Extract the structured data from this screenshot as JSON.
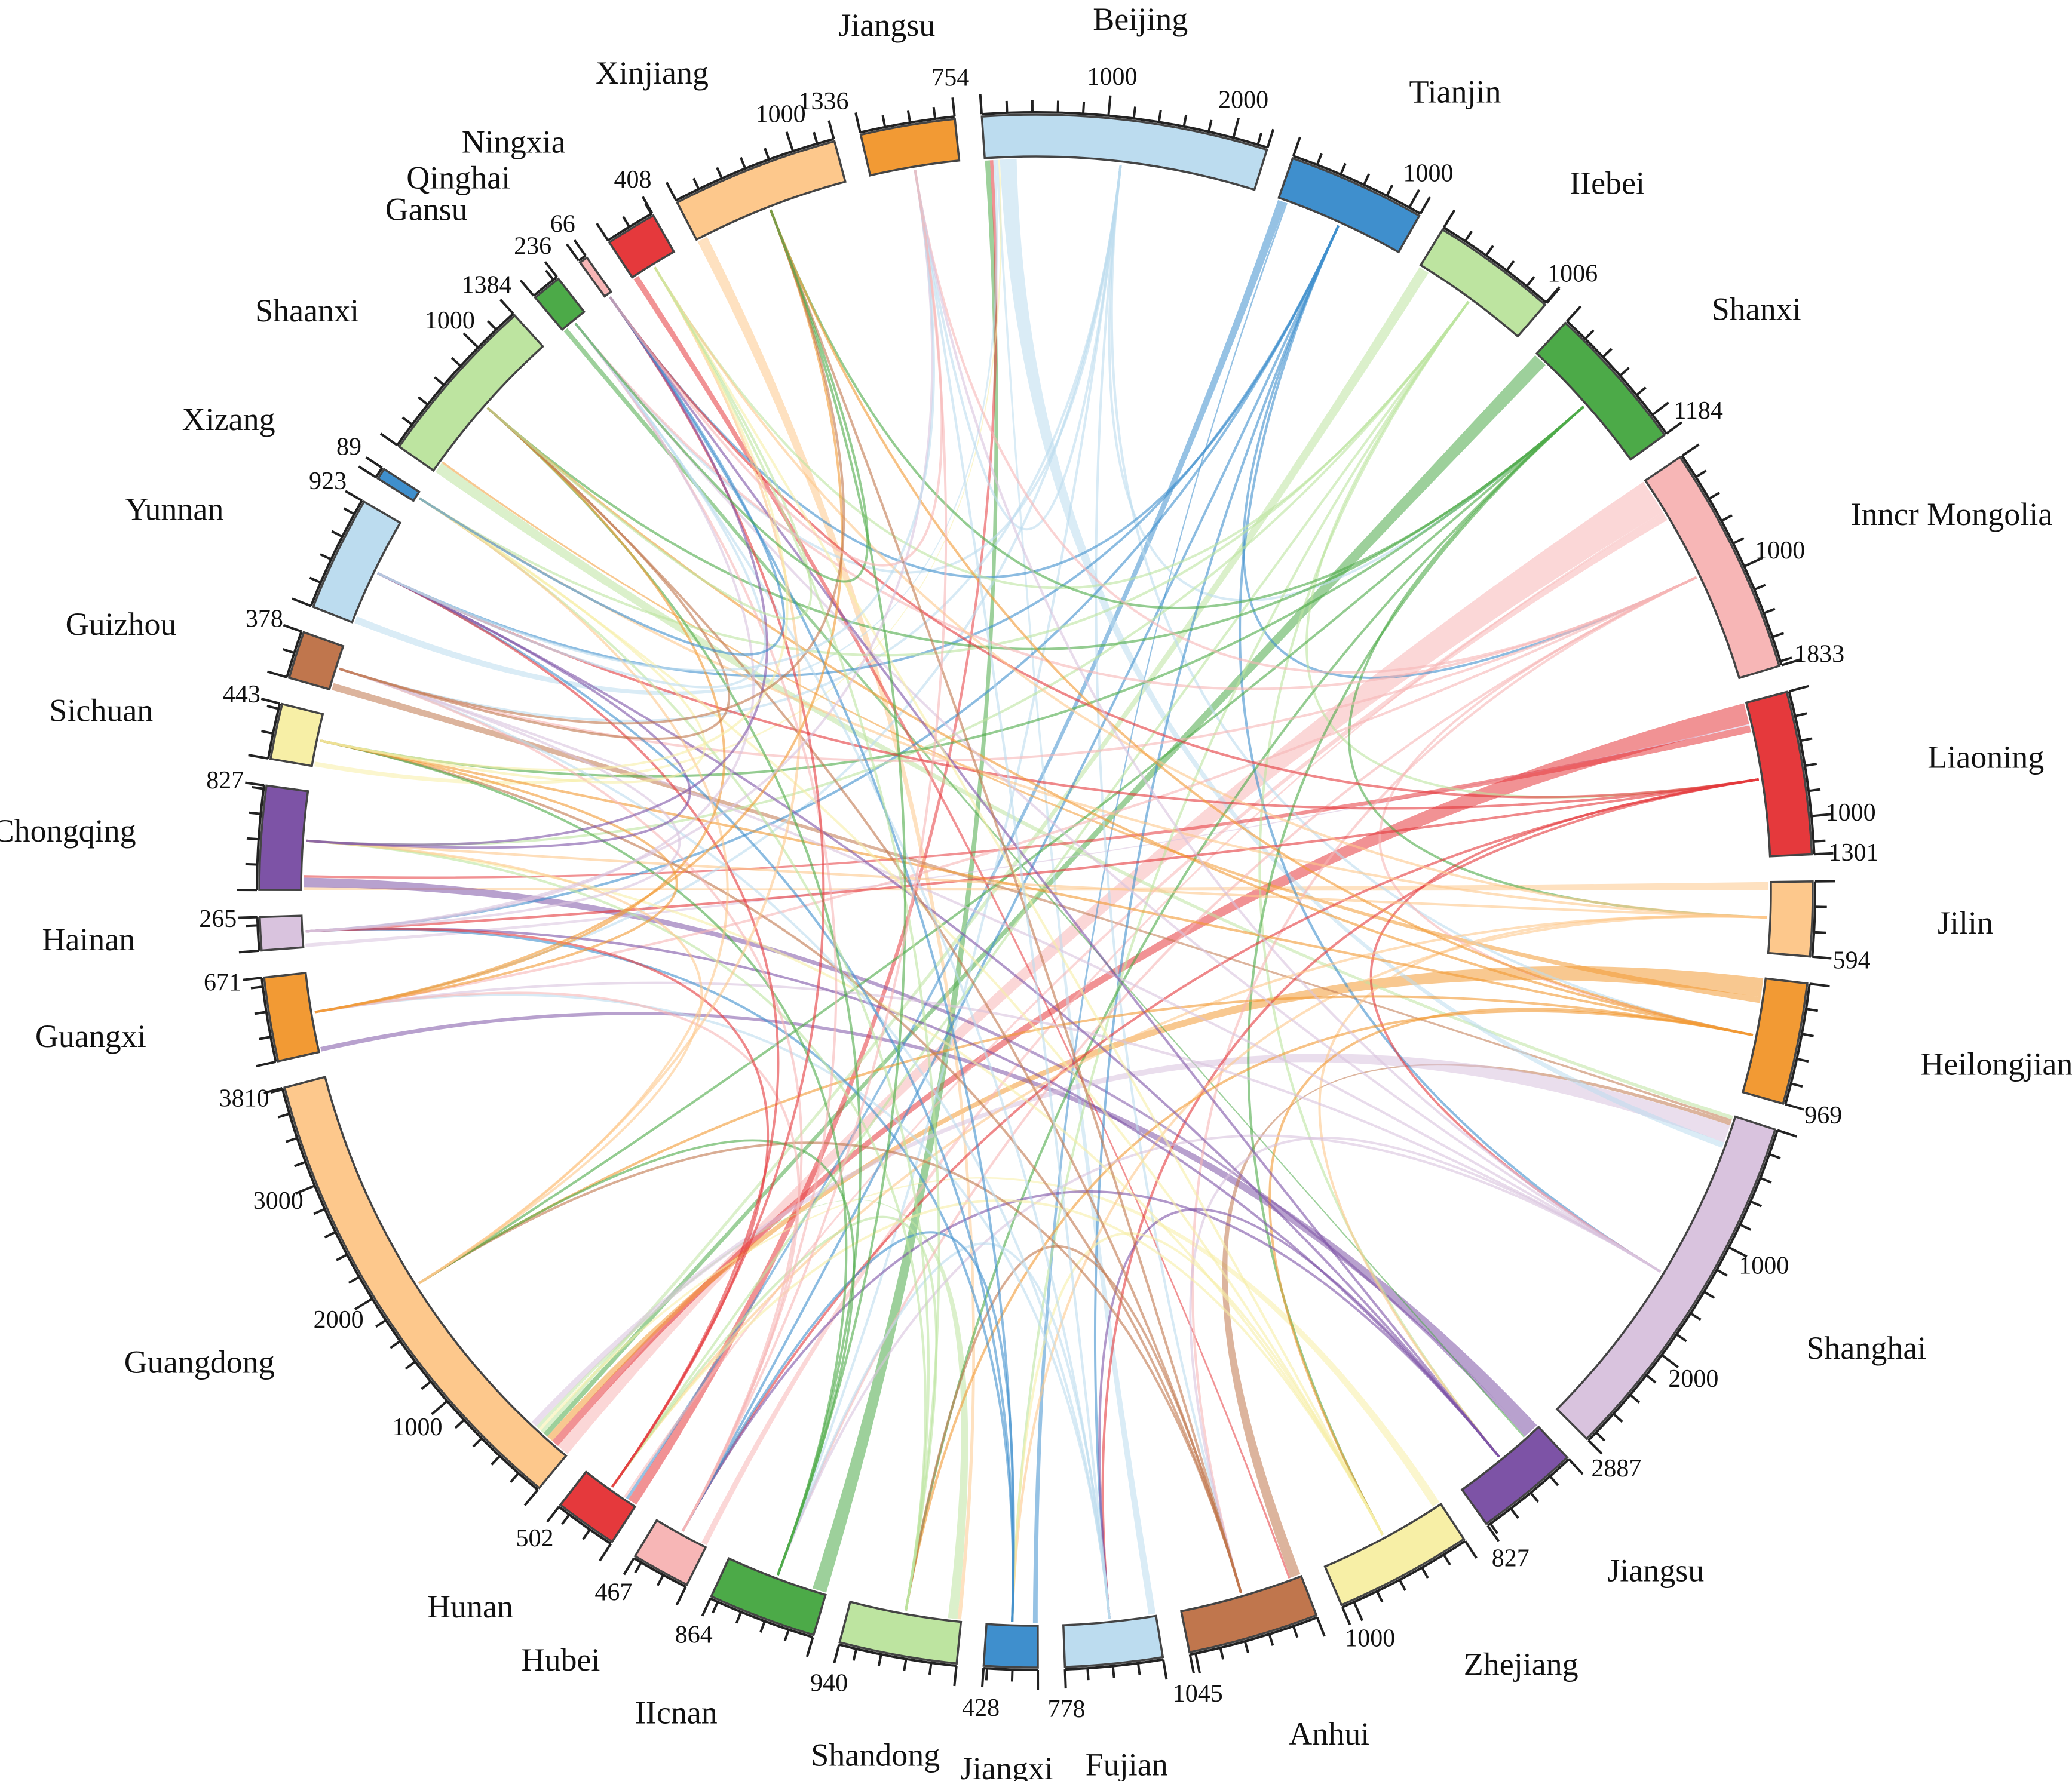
{
  "chart_data": {
    "type": "chord",
    "title": "",
    "regions": [
      {
        "name": "Beijing",
        "value": 2280,
        "color": "#bcdcef",
        "tick_labels": [
          "1000",
          "2000"
        ]
      },
      {
        "name": "Tianjin",
        "value": 1100,
        "color": "#3f8fcd",
        "tick_labels": [
          "1000"
        ]
      },
      {
        "name": "Hebei",
        "label": "IIebei",
        "value": 1006,
        "color": "#bde4a0",
        "tick_labels": [
          "1006"
        ]
      },
      {
        "name": "Shanxi",
        "value": 1184,
        "color": "#4caa48",
        "tick_labels": [
          "1184"
        ]
      },
      {
        "name": "Inner Mongolia",
        "label": "Inncr Mongolia",
        "value": 1833,
        "color": "#f7b6b6",
        "tick_labels": [
          "1000",
          "1833"
        ]
      },
      {
        "name": "Liaoning",
        "value": 1301,
        "color": "#e5393c",
        "tick_labels": [
          "1000",
          "1301"
        ]
      },
      {
        "name": "Jilin",
        "value": 594,
        "color": "#fdc88c",
        "tick_labels": [
          "594"
        ]
      },
      {
        "name": "Heilongjiang",
        "value": 969,
        "color": "#f29a34",
        "tick_labels": [
          "969"
        ]
      },
      {
        "name": "Shanghai",
        "value": 2887,
        "color": "#d9c3de",
        "tick_labels": [
          "1000",
          "2000",
          "2887"
        ]
      },
      {
        "name": "Jiangsu",
        "value": 827,
        "color": "#7d53a6",
        "tick_labels": [
          "827"
        ]
      },
      {
        "name": "Zhejiang",
        "value": 1100,
        "color": "#f7efa6",
        "tick_labels": [
          "1000"
        ]
      },
      {
        "name": "Anhui",
        "value": 1045,
        "color": "#c0764d",
        "tick_labels": [
          "1045"
        ]
      },
      {
        "name": "Fujian",
        "value": 778,
        "color": "#bcdcef",
        "tick_labels": [
          "778"
        ]
      },
      {
        "name": "Jiangxi",
        "value": 428,
        "color": "#3f8fcd",
        "tick_labels": [
          "428"
        ]
      },
      {
        "name": "Shandong",
        "value": 940,
        "color": "#bde4a0",
        "tick_labels": [
          "940"
        ]
      },
      {
        "name": "Henan",
        "label": "IIcnan",
        "value": 864,
        "color": "#4caa48",
        "tick_labels": [
          "864"
        ]
      },
      {
        "name": "Hubei",
        "value": 467,
        "color": "#f7b6b6",
        "tick_labels": [
          "467"
        ]
      },
      {
        "name": "Hunan",
        "value": 502,
        "color": "#e5393c",
        "tick_labels": [
          "502"
        ]
      },
      {
        "name": "Guangdong",
        "value": 3810,
        "color": "#fdc88c",
        "tick_labels": [
          "1000",
          "2000",
          "3000",
          "3810"
        ]
      },
      {
        "name": "Guangxi",
        "value": 671,
        "color": "#f29a34",
        "tick_labels": [
          "671"
        ]
      },
      {
        "name": "Hainan",
        "value": 265,
        "color": "#d9c3de",
        "tick_labels": [
          "265"
        ]
      },
      {
        "name": "Chongqing",
        "value": 827,
        "color": "#7d53a6",
        "tick_labels": [
          "827"
        ]
      },
      {
        "name": "Sichuan",
        "value": 443,
        "color": "#f7efa6",
        "tick_labels": [
          "443"
        ]
      },
      {
        "name": "Guizhou",
        "value": 378,
        "color": "#c0764d",
        "tick_labels": [
          "378"
        ]
      },
      {
        "name": "Yunnan",
        "value": 923,
        "color": "#bcdcef",
        "tick_labels": [
          "923"
        ]
      },
      {
        "name": "Xizang",
        "value": 89,
        "color": "#3f8fcd",
        "tick_labels": [
          "89"
        ]
      },
      {
        "name": "Shaanxi",
        "value": 1384,
        "color": "#bde4a0",
        "tick_labels": [
          "1000",
          "1384"
        ]
      },
      {
        "name": "Gansu",
        "value": 236,
        "color": "#4caa48",
        "tick_labels": [
          "236"
        ]
      },
      {
        "name": "Qinghai",
        "value": 66,
        "color": "#f7b6b6",
        "tick_labels": [
          "66"
        ]
      },
      {
        "name": "Ningxia",
        "value": 408,
        "color": "#e5393c",
        "tick_labels": [
          "408"
        ]
      },
      {
        "name": "Xinjiang",
        "value": 1336,
        "color": "#fdc88c",
        "tick_labels": [
          "1000",
          "1336"
        ]
      },
      {
        "name": "Jiangsu",
        "label": "Jiangsu",
        "value": 754,
        "color": "#f29a34",
        "tick_labels": [
          "754"
        ]
      }
    ],
    "flows": [
      {
        "from": "Inner Mongolia",
        "to": "Guangdong",
        "value": 300
      },
      {
        "from": "Liaoning",
        "to": "Guangdong",
        "value": 180
      },
      {
        "from": "Heilongjiang",
        "to": "Guangdong",
        "value": 160
      },
      {
        "from": "Shanxi",
        "to": "Guangdong",
        "value": 120
      },
      {
        "from": "Jiangsu",
        "to": "Guangxi",
        "value": 110
      },
      {
        "from": "Henan",
        "to": "Beijing",
        "value": 120
      },
      {
        "from": "Hunan",
        "to": "Beijing",
        "value": 80
      },
      {
        "from": "Xinjiang",
        "to": "Shandong",
        "value": 90
      },
      {
        "from": "Shaanxi",
        "to": "Shanghai",
        "value": 90
      },
      {
        "from": "Tianjin",
        "to": "Hunan",
        "value": 70
      },
      {
        "from": "Hebei",
        "to": "Guangdong",
        "value": 90
      },
      {
        "from": "Jilin",
        "to": "Chongqing",
        "value": 70
      },
      {
        "from": "Chongqing",
        "to": "Jiangsu",
        "value": 80
      },
      {
        "from": "Guizhou",
        "to": "Shanghai",
        "value": 60
      },
      {
        "from": "Yunnan",
        "to": "Beijing",
        "value": 60
      },
      {
        "from": "Zhejiang",
        "to": "Guangdong",
        "value": 70
      },
      {
        "from": "Anhui",
        "to": "Shanghai",
        "value": 90
      },
      {
        "from": "Fujian",
        "to": "Beijing",
        "value": 60
      },
      {
        "from": "Jiangxi",
        "to": "Tianjin",
        "value": 40
      },
      {
        "from": "Shandong",
        "to": "Guangdong",
        "value": 80
      },
      {
        "from": "Hubei",
        "to": "Inner Mongolia",
        "value": 50
      },
      {
        "from": "Sichuan",
        "to": "Beijing",
        "value": 40
      },
      {
        "from": "Hainan",
        "to": "Liaoning",
        "value": 30
      },
      {
        "from": "Gansu",
        "to": "Jiangsu",
        "value": 40
      },
      {
        "from": "Ningxia",
        "to": "Anhui",
        "value": 50
      },
      {
        "from": "Shanghai",
        "to": "Guangdong",
        "value": 150
      },
      {
        "from": "Beijing",
        "to": "Shanghai",
        "value": 140
      },
      {
        "from": "Liaoning",
        "to": "Chongqing",
        "value": 60
      },
      {
        "from": "Heilongjiang",
        "to": "Shaanxi",
        "value": 50
      },
      {
        "from": "Inner Mongolia",
        "to": "Hunan",
        "value": 60
      }
    ]
  }
}
